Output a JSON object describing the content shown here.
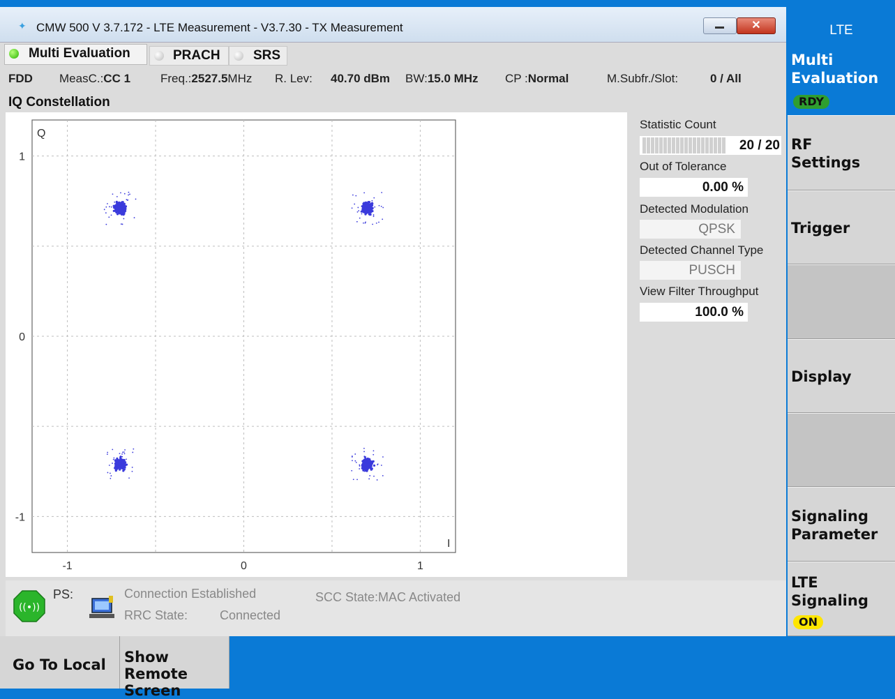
{
  "window": {
    "title": "CMW 500 V 3.7.172 - LTE Measurement  - V3.7.30 - TX Measurement",
    "close_glyph": "✕"
  },
  "tabs": [
    {
      "label": "Multi Evaluation",
      "active": true
    },
    {
      "label": "PRACH",
      "active": false
    },
    {
      "label": "SRS",
      "active": false
    }
  ],
  "info": {
    "duplex": "FDD",
    "measc_label": "MeasC.:",
    "measc_value": "CC 1",
    "freq_label": "Freq.:",
    "freq_value": "2527.5",
    "freq_unit": "MHz",
    "rlev_label": "R. Lev:",
    "rlev_value": "40.70 dBm",
    "bw_label": "BW:",
    "bw_value": "15.0 MHz",
    "cp_label": "CP :",
    "cp_value": "Normal",
    "msubfr_label": "M.Subfr./Slot:",
    "msubfr_value": "0  / All"
  },
  "section_title": "IQ Constellation",
  "chart_data": {
    "type": "scatter",
    "title": "",
    "xlabel": "I",
    "ylabel": "Q",
    "xlim": [
      -1.2,
      1.2
    ],
    "ylim": [
      -1.2,
      1.2
    ],
    "x_ticks": [
      "-1",
      "0",
      "1"
    ],
    "y_ticks": [
      "1",
      "0",
      "-1"
    ],
    "grid": true,
    "point_color": "#3b3bdc",
    "clusters": [
      {
        "center": [
          -0.7,
          0.71
        ],
        "spread": 0.03
      },
      {
        "center": [
          0.7,
          0.71
        ],
        "spread": 0.03
      },
      {
        "center": [
          -0.7,
          -0.71
        ],
        "spread": 0.03
      },
      {
        "center": [
          0.7,
          -0.71
        ],
        "spread": 0.03
      }
    ]
  },
  "stats": {
    "statistic_count_label": "Statistic Count",
    "statistic_count_value": "20 / 20",
    "statistic_count_progress": 1.0,
    "out_of_tolerance_label": "Out of Tolerance",
    "out_of_tolerance_value": "0.00  %",
    "detected_modulation_label": "Detected Modulation",
    "detected_modulation_value": "QPSK",
    "detected_channel_type_label": "Detected Channel Type",
    "detected_channel_type_value": "PUSCH",
    "view_filter_throughput_label": "View Filter Throughput",
    "view_filter_throughput_value": "100.0  %"
  },
  "status": {
    "ps_label": "PS:",
    "connection": "Connection Established",
    "rrc_label": "RRC State:",
    "rrc_value": "Connected",
    "scc_label": "SCC State:",
    "scc_value": "MAC Activated"
  },
  "softkeys": {
    "header": "LTE",
    "multi_evaluation": "Multi\nEvaluation",
    "multi_evaluation_badge": "RDY",
    "rf_settings": "RF\nSettings",
    "trigger": "Trigger",
    "display": "Display",
    "signaling_parameter": "Signaling\nParameter",
    "lte_signaling": "LTE\nSignaling",
    "lte_signaling_badge": "ON"
  },
  "bottom_keys": {
    "go_to_local": "Go To Local",
    "show_remote_screen": "Show Remote\nScreen"
  },
  "colors": {
    "accent_blue": "#0a7ad6",
    "rdy_green": "#2f9e2f",
    "on_yellow": "#ffe600"
  }
}
